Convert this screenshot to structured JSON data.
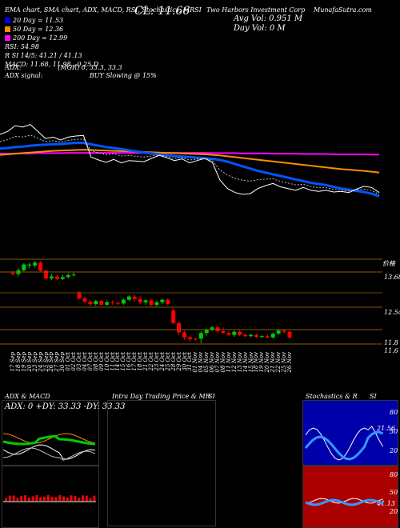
{
  "header": {
    "indicators": "EMA chart, SMA chart, ADX, MACD, RSI, Stochastics, MRSI",
    "ticker_line": "CL: 11.66 Two Harbors Investment Corp TWO",
    "cl_label": "CL: 11.66",
    "company": "Two Harbors Investment Corp",
    "watermark": "MunafaSutra.com",
    "avg_vol": "Avg Vol: 0.951 M",
    "day_vol": "Day Vol: 0 M"
  },
  "legend": {
    "items": [
      {
        "label": "20 Day = 11.53",
        "color": "#0000ff"
      },
      {
        "label": "50 Day = 12.36",
        "color": "#ff8c00"
      },
      {
        "label": "200 Day = 12.99",
        "color": "#ff00ff"
      }
    ],
    "rsi": "RSI: 54.98",
    "rsi2": "R SI 14/5: 41.21 / 41.13",
    "macd": "MACD: 11.68, 11.98, -0.25 D",
    "adx": "ADX:                  (MGR) 0, 33.3, 33.3",
    "adx_signal": "ADX signal:                       BUY Slowing @ 15%"
  },
  "price_axis": {
    "labels": [
      "13.68",
      "12.54",
      "11.8",
      "11.6"
    ],
    "top_label": "价格"
  },
  "dates": [
    "17 Sep",
    "18 Sep",
    "19 Sep",
    "20 Sep",
    "23 Sep",
    "24 Sep",
    "25 Sep",
    "26 Sep",
    "27 Sep",
    "30 Sep",
    "01 Oct",
    "02 Oct",
    "03 Oct",
    "04 Oct",
    "07 Oct",
    "08 Oct",
    "09 Oct",
    "10 Oct",
    "11 Oct",
    "14 Oct",
    "15 Oct",
    "16 Oct",
    "17 Oct",
    "18 Oct",
    "21 Oct",
    "22 Oct",
    "23 Oct",
    "24 Oct",
    "25 Oct",
    "28 Oct",
    "29 Oct",
    "30 Oct",
    "31 Oct",
    "01 Nov",
    "04 Nov",
    "05 Nov",
    "06 Nov",
    "07 Nov",
    "08 Nov",
    "11 Nov",
    "12 Nov",
    "13 Nov",
    "14 Nov",
    "15 Nov",
    "18 Nov",
    "19 Nov",
    "20 Nov",
    "21 Nov",
    "22 Nov",
    "25 Nov",
    "26 Nov"
  ],
  "panels": {
    "adx_title": "ADX & MACD",
    "adx_values": "ADX: 0  +DY: 33.33  -DY: 33.33",
    "intraday_title": "Intra Day Trading Price & MR",
    "intraday_si": "SI",
    "stoch_title": "Stochastics & R",
    "stoch_si": "SI",
    "stoch_axis": [
      "80",
      "50",
      "20"
    ],
    "stoch_annot": "21.56",
    "rsi_axis": [
      "80",
      "50",
      "20"
    ],
    "rsi_annot": "41.13"
  },
  "chart_data": {
    "type": "candlestick",
    "dates": [
      "17 Sep",
      "18 Sep",
      "19 Sep",
      "20 Sep",
      "23 Sep",
      "24 Sep",
      "25 Sep",
      "26 Sep",
      "27 Sep",
      "30 Sep",
      "01 Oct",
      "02 Oct",
      "03 Oct",
      "04 Oct",
      "07 Oct",
      "08 Oct",
      "09 Oct",
      "10 Oct",
      "11 Oct",
      "14 Oct",
      "15 Oct",
      "16 Oct",
      "17 Oct",
      "18 Oct",
      "21 Oct",
      "22 Oct",
      "23 Oct",
      "24 Oct",
      "25 Oct",
      "28 Oct",
      "29 Oct",
      "30 Oct",
      "31 Oct",
      "01 Nov",
      "04 Nov",
      "05 Nov",
      "06 Nov",
      "07 Nov",
      "08 Nov",
      "11 Nov",
      "12 Nov",
      "13 Nov",
      "14 Nov",
      "15 Nov",
      "18 Nov",
      "19 Nov",
      "20 Nov",
      "21 Nov",
      "22 Nov",
      "25 Nov",
      "26 Nov"
    ],
    "ohlc": [
      [
        13.72,
        13.78,
        13.62,
        13.68,
        "red"
      ],
      [
        13.68,
        13.86,
        13.6,
        13.8,
        "green"
      ],
      [
        13.8,
        14.02,
        13.76,
        13.98,
        "green"
      ],
      [
        13.98,
        14.04,
        13.86,
        13.95,
        "green"
      ],
      [
        13.95,
        14.1,
        13.88,
        14.04,
        "green"
      ],
      [
        14.04,
        14.1,
        13.74,
        13.78,
        "red"
      ],
      [
        13.78,
        13.84,
        13.48,
        13.54,
        "red"
      ],
      [
        13.54,
        13.68,
        13.48,
        13.6,
        "green"
      ],
      [
        13.6,
        13.66,
        13.48,
        13.52,
        "red"
      ],
      [
        13.52,
        13.66,
        13.48,
        13.58,
        "green"
      ],
      [
        13.58,
        13.7,
        13.54,
        13.64,
        "green"
      ],
      [
        13.64,
        13.72,
        13.6,
        13.66,
        "green"
      ],
      [
        13.1,
        13.14,
        12.86,
        12.9,
        "red"
      ],
      [
        12.9,
        12.96,
        12.74,
        12.8,
        "red"
      ],
      [
        12.8,
        12.86,
        12.66,
        12.72,
        "red"
      ],
      [
        12.72,
        12.86,
        12.66,
        12.82,
        "green"
      ],
      [
        12.82,
        12.86,
        12.66,
        12.7,
        "red"
      ],
      [
        12.7,
        12.84,
        12.66,
        12.78,
        "green"
      ],
      [
        12.78,
        12.84,
        12.7,
        12.76,
        "red"
      ],
      [
        12.76,
        12.8,
        12.68,
        12.74,
        "red"
      ],
      [
        12.74,
        12.9,
        12.7,
        12.86,
        "green"
      ],
      [
        12.86,
        13.0,
        12.82,
        12.96,
        "green"
      ],
      [
        12.96,
        13.02,
        12.8,
        12.88,
        "red"
      ],
      [
        12.88,
        12.96,
        12.72,
        12.78,
        "red"
      ],
      [
        12.78,
        12.88,
        12.7,
        12.84,
        "green"
      ],
      [
        12.84,
        12.88,
        12.64,
        12.7,
        "red"
      ],
      [
        12.7,
        12.82,
        12.64,
        12.78,
        "green"
      ],
      [
        12.78,
        12.9,
        12.72,
        12.86,
        "green"
      ],
      [
        12.86,
        12.9,
        12.68,
        12.72,
        "red"
      ],
      [
        12.52,
        12.58,
        12.08,
        12.12,
        "red"
      ],
      [
        12.12,
        12.16,
        11.74,
        11.82,
        "red"
      ],
      [
        11.82,
        11.88,
        11.58,
        11.66,
        "red"
      ],
      [
        11.66,
        11.72,
        11.52,
        11.6,
        "red"
      ],
      [
        11.6,
        11.64,
        11.56,
        11.62,
        "red"
      ],
      [
        11.62,
        11.86,
        11.48,
        11.8,
        "green"
      ],
      [
        11.8,
        11.94,
        11.72,
        11.9,
        "green"
      ],
      [
        11.9,
        12.02,
        11.86,
        11.98,
        "green"
      ],
      [
        11.98,
        12.02,
        11.8,
        11.86,
        "red"
      ],
      [
        11.86,
        11.98,
        11.78,
        11.8,
        "red"
      ],
      [
        11.8,
        11.86,
        11.7,
        11.74,
        "red"
      ],
      [
        11.74,
        11.88,
        11.68,
        11.84,
        "green"
      ],
      [
        11.84,
        11.88,
        11.7,
        11.74,
        "red"
      ],
      [
        11.74,
        11.8,
        11.66,
        11.7,
        "red"
      ],
      [
        11.7,
        11.78,
        11.66,
        11.74,
        "green"
      ],
      [
        11.74,
        11.78,
        11.64,
        11.68,
        "red"
      ],
      [
        11.68,
        11.74,
        11.64,
        11.7,
        "green"
      ],
      [
        11.7,
        11.76,
        11.62,
        11.66,
        "red"
      ],
      [
        11.66,
        11.82,
        11.62,
        11.78,
        "green"
      ],
      [
        11.78,
        11.94,
        11.74,
        11.88,
        "green"
      ],
      [
        11.88,
        11.92,
        11.78,
        11.84,
        "red"
      ],
      [
        11.84,
        11.88,
        11.62,
        11.66,
        "red"
      ]
    ],
    "ylim": [
      11.4,
      14.2
    ],
    "ma_upper": {
      "price": [
        13.7,
        13.8,
        14.0,
        13.95,
        14.04,
        13.8,
        13.55,
        13.6,
        13.5,
        13.6,
        13.64,
        13.66,
        12.9,
        12.8,
        12.72,
        12.82,
        12.7,
        12.78,
        12.76,
        12.74,
        12.86,
        12.96,
        12.88,
        12.78,
        12.84,
        12.7,
        12.78,
        12.86,
        12.72,
        12.1,
        11.8,
        11.66,
        11.6,
        11.62,
        11.8,
        11.9,
        11.98,
        11.86,
        11.8,
        11.74,
        11.84,
        11.74,
        11.7,
        11.74,
        11.68,
        11.7,
        11.66,
        11.78,
        11.88,
        11.84,
        11.66
      ],
      "ma20": [
        13.2,
        13.22,
        13.25,
        13.27,
        13.3,
        13.32,
        13.34,
        13.35,
        13.36,
        13.38,
        13.4,
        13.4,
        13.35,
        13.3,
        13.25,
        13.22,
        13.18,
        13.14,
        13.1,
        13.06,
        13.03,
        13.0,
        12.97,
        12.94,
        12.92,
        12.9,
        12.88,
        12.86,
        12.84,
        12.8,
        12.74,
        12.66,
        12.58,
        12.5,
        12.42,
        12.36,
        12.3,
        12.24,
        12.18,
        12.12,
        12.06,
        12.0,
        11.96,
        11.92,
        11.86,
        11.8,
        11.76,
        11.72,
        11.68,
        11.62,
        11.53
      ],
      "ma50": [
        12.98,
        13.0,
        13.02,
        13.04,
        13.06,
        13.08,
        13.1,
        13.12,
        13.13,
        13.14,
        13.15,
        13.16,
        13.15,
        13.14,
        13.13,
        13.12,
        13.11,
        13.1,
        13.09,
        13.08,
        13.07,
        13.06,
        13.05,
        13.04,
        13.03,
        13.02,
        13.01,
        13.0,
        12.98,
        12.96,
        12.93,
        12.9,
        12.87,
        12.84,
        12.81,
        12.78,
        12.75,
        12.72,
        12.69,
        12.66,
        12.63,
        12.6,
        12.57,
        12.54,
        12.51,
        12.48,
        12.46,
        12.44,
        12.42,
        12.39,
        12.36
      ],
      "ma200": [
        13.02,
        13.02,
        13.03,
        13.03,
        13.03,
        13.04,
        13.04,
        13.04,
        13.04,
        13.05,
        13.05,
        13.05,
        13.05,
        13.05,
        13.05,
        13.05,
        13.05,
        13.05,
        13.05,
        13.05,
        13.05,
        13.05,
        13.05,
        13.05,
        13.05,
        13.05,
        13.05,
        13.05,
        13.04,
        13.04,
        13.04,
        13.04,
        13.03,
        13.03,
        13.03,
        13.03,
        13.02,
        13.02,
        13.02,
        13.02,
        13.01,
        13.01,
        13.01,
        13.01,
        13.0,
        13.0,
        13.0,
        13.0,
        13.0,
        12.99,
        12.99
      ]
    }
  }
}
